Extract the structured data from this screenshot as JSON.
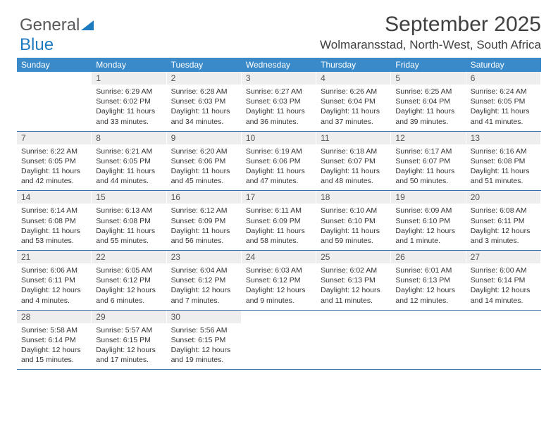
{
  "brand": {
    "word1": "General",
    "word2": "Blue"
  },
  "title": "September 2025",
  "location": "Wolmaransstad, North-West, South Africa",
  "colors": {
    "header_bg": "#3a8ac9",
    "header_text": "#ffffff",
    "daynum_bg": "#eeeeee",
    "row_border": "#3a6ea5",
    "logo_gray": "#58595b",
    "logo_blue": "#1f7bbf",
    "body_text": "#333333"
  },
  "weekdays": [
    "Sunday",
    "Monday",
    "Tuesday",
    "Wednesday",
    "Thursday",
    "Friday",
    "Saturday"
  ],
  "layout": {
    "first_weekday_index": 1,
    "days_in_month": 30,
    "rows": 5,
    "cols": 7
  },
  "days": [
    {
      "n": 1,
      "sunrise": "6:29 AM",
      "sunset": "6:02 PM",
      "daylight": "11 hours and 33 minutes."
    },
    {
      "n": 2,
      "sunrise": "6:28 AM",
      "sunset": "6:03 PM",
      "daylight": "11 hours and 34 minutes."
    },
    {
      "n": 3,
      "sunrise": "6:27 AM",
      "sunset": "6:03 PM",
      "daylight": "11 hours and 36 minutes."
    },
    {
      "n": 4,
      "sunrise": "6:26 AM",
      "sunset": "6:04 PM",
      "daylight": "11 hours and 37 minutes."
    },
    {
      "n": 5,
      "sunrise": "6:25 AM",
      "sunset": "6:04 PM",
      "daylight": "11 hours and 39 minutes."
    },
    {
      "n": 6,
      "sunrise": "6:24 AM",
      "sunset": "6:05 PM",
      "daylight": "11 hours and 41 minutes."
    },
    {
      "n": 7,
      "sunrise": "6:22 AM",
      "sunset": "6:05 PM",
      "daylight": "11 hours and 42 minutes."
    },
    {
      "n": 8,
      "sunrise": "6:21 AM",
      "sunset": "6:05 PM",
      "daylight": "11 hours and 44 minutes."
    },
    {
      "n": 9,
      "sunrise": "6:20 AM",
      "sunset": "6:06 PM",
      "daylight": "11 hours and 45 minutes."
    },
    {
      "n": 10,
      "sunrise": "6:19 AM",
      "sunset": "6:06 PM",
      "daylight": "11 hours and 47 minutes."
    },
    {
      "n": 11,
      "sunrise": "6:18 AM",
      "sunset": "6:07 PM",
      "daylight": "11 hours and 48 minutes."
    },
    {
      "n": 12,
      "sunrise": "6:17 AM",
      "sunset": "6:07 PM",
      "daylight": "11 hours and 50 minutes."
    },
    {
      "n": 13,
      "sunrise": "6:16 AM",
      "sunset": "6:08 PM",
      "daylight": "11 hours and 51 minutes."
    },
    {
      "n": 14,
      "sunrise": "6:14 AM",
      "sunset": "6:08 PM",
      "daylight": "11 hours and 53 minutes."
    },
    {
      "n": 15,
      "sunrise": "6:13 AM",
      "sunset": "6:08 PM",
      "daylight": "11 hours and 55 minutes."
    },
    {
      "n": 16,
      "sunrise": "6:12 AM",
      "sunset": "6:09 PM",
      "daylight": "11 hours and 56 minutes."
    },
    {
      "n": 17,
      "sunrise": "6:11 AM",
      "sunset": "6:09 PM",
      "daylight": "11 hours and 58 minutes."
    },
    {
      "n": 18,
      "sunrise": "6:10 AM",
      "sunset": "6:10 PM",
      "daylight": "11 hours and 59 minutes."
    },
    {
      "n": 19,
      "sunrise": "6:09 AM",
      "sunset": "6:10 PM",
      "daylight": "12 hours and 1 minute."
    },
    {
      "n": 20,
      "sunrise": "6:08 AM",
      "sunset": "6:11 PM",
      "daylight": "12 hours and 3 minutes."
    },
    {
      "n": 21,
      "sunrise": "6:06 AM",
      "sunset": "6:11 PM",
      "daylight": "12 hours and 4 minutes."
    },
    {
      "n": 22,
      "sunrise": "6:05 AM",
      "sunset": "6:12 PM",
      "daylight": "12 hours and 6 minutes."
    },
    {
      "n": 23,
      "sunrise": "6:04 AM",
      "sunset": "6:12 PM",
      "daylight": "12 hours and 7 minutes."
    },
    {
      "n": 24,
      "sunrise": "6:03 AM",
      "sunset": "6:12 PM",
      "daylight": "12 hours and 9 minutes."
    },
    {
      "n": 25,
      "sunrise": "6:02 AM",
      "sunset": "6:13 PM",
      "daylight": "12 hours and 11 minutes."
    },
    {
      "n": 26,
      "sunrise": "6:01 AM",
      "sunset": "6:13 PM",
      "daylight": "12 hours and 12 minutes."
    },
    {
      "n": 27,
      "sunrise": "6:00 AM",
      "sunset": "6:14 PM",
      "daylight": "12 hours and 14 minutes."
    },
    {
      "n": 28,
      "sunrise": "5:58 AM",
      "sunset": "6:14 PM",
      "daylight": "12 hours and 15 minutes."
    },
    {
      "n": 29,
      "sunrise": "5:57 AM",
      "sunset": "6:15 PM",
      "daylight": "12 hours and 17 minutes."
    },
    {
      "n": 30,
      "sunrise": "5:56 AM",
      "sunset": "6:15 PM",
      "daylight": "12 hours and 19 minutes."
    }
  ],
  "labels": {
    "sunrise": "Sunrise:",
    "sunset": "Sunset:",
    "daylight": "Daylight:"
  }
}
